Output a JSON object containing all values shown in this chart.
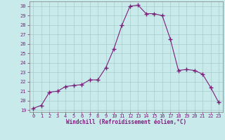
{
  "x": [
    0,
    1,
    2,
    3,
    4,
    5,
    6,
    7,
    8,
    9,
    10,
    11,
    12,
    13,
    14,
    15,
    16,
    17,
    18,
    19,
    20,
    21,
    22,
    23
  ],
  "y": [
    19.2,
    19.5,
    20.9,
    21.0,
    21.5,
    21.6,
    21.7,
    22.2,
    22.2,
    23.5,
    25.5,
    28.0,
    30.0,
    30.1,
    29.2,
    29.2,
    29.0,
    26.5,
    23.2,
    23.3,
    23.2,
    22.8,
    21.4,
    19.8
  ],
  "line_color": "#7B1F7B",
  "marker": "+",
  "marker_size": 4,
  "bg_color": "#c8eaea",
  "grid_color": "#a8cccc",
  "xlabel": "Windchill (Refroidissement éolien,°C)",
  "xlim": [
    -0.5,
    23.5
  ],
  "ylim": [
    18.8,
    30.5
  ],
  "yticks": [
    19,
    20,
    21,
    22,
    23,
    24,
    25,
    26,
    27,
    28,
    29,
    30
  ],
  "xticks": [
    0,
    1,
    2,
    3,
    4,
    5,
    6,
    7,
    8,
    9,
    10,
    11,
    12,
    13,
    14,
    15,
    16,
    17,
    18,
    19,
    20,
    21,
    22,
    23
  ],
  "tick_color": "#7B1F7B",
  "label_color": "#7B1F7B",
  "axis_color": "#7B7B7B"
}
